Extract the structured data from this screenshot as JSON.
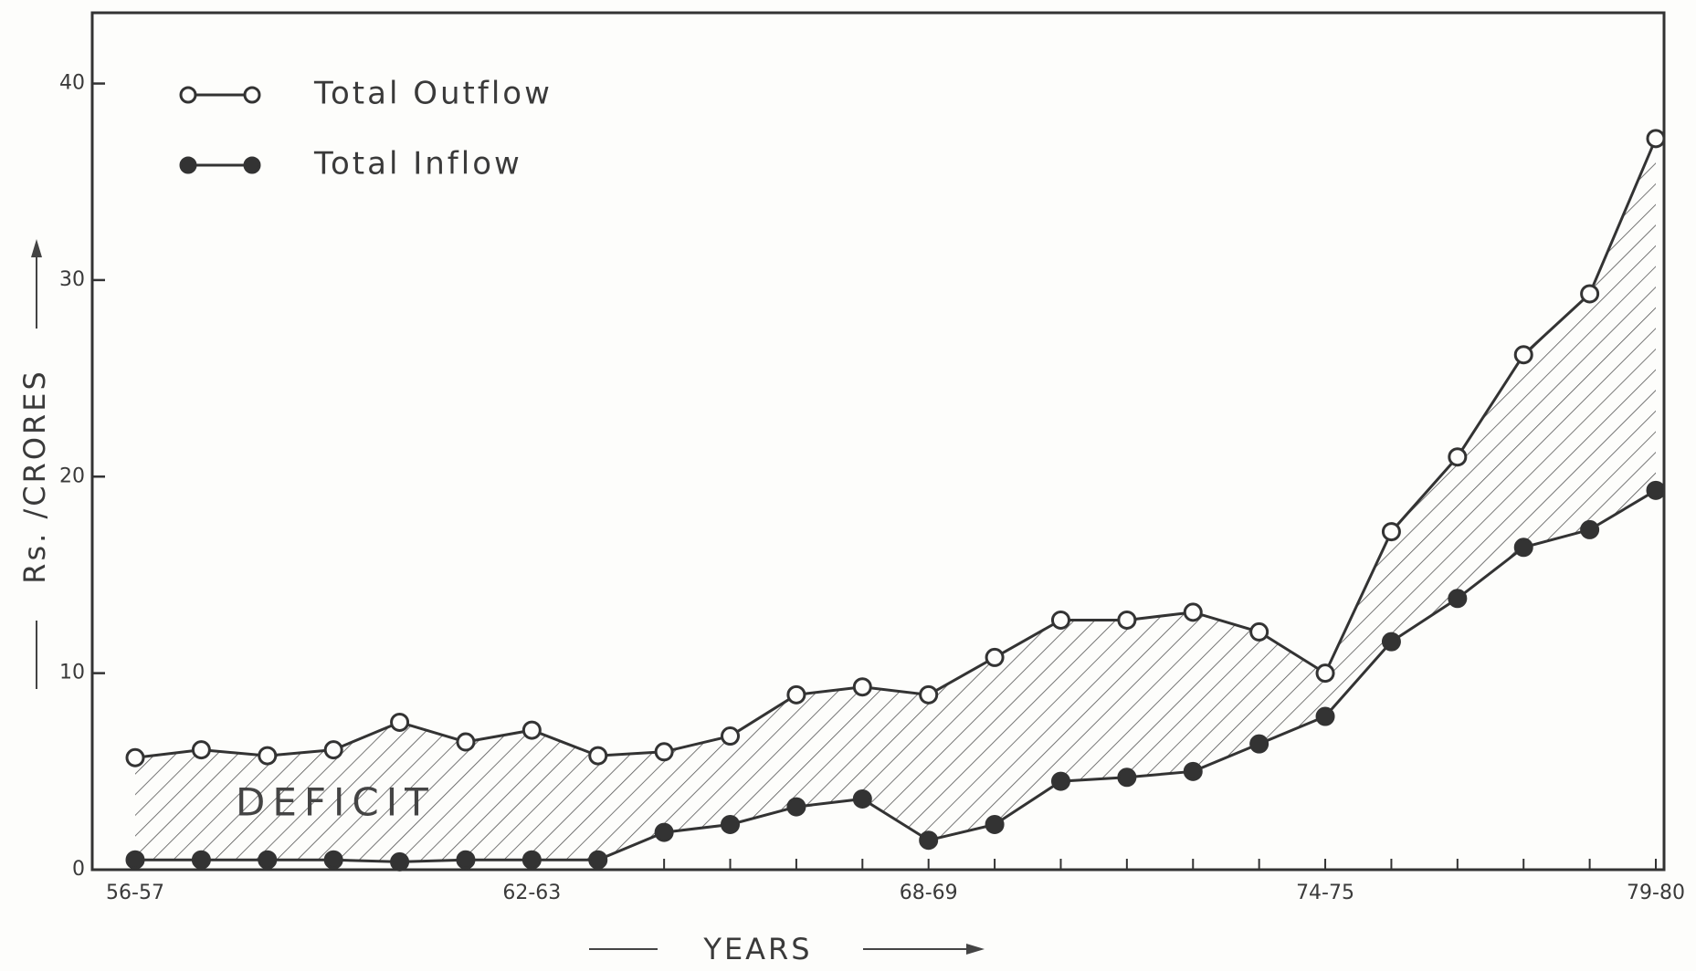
{
  "chart_data": {
    "type": "line",
    "x_label": "YEARS",
    "y_label": "Rs. /CRORES",
    "annotation": "DEFICIT",
    "categories": [
      "56-57",
      null,
      null,
      null,
      null,
      null,
      "62-63",
      null,
      null,
      null,
      null,
      null,
      "68-69",
      null,
      null,
      null,
      null,
      null,
      "74-75",
      null,
      null,
      null,
      null,
      "79-80"
    ],
    "series": [
      {
        "name": "Total Outflow",
        "color": "#333333",
        "marker": "open",
        "values": [
          5.7,
          6.1,
          5.8,
          6.1,
          7.5,
          6.5,
          7.1,
          5.8,
          6.0,
          6.8,
          8.9,
          9.3,
          8.9,
          10.8,
          12.7,
          12.7,
          13.1,
          12.1,
          10.0,
          17.2,
          21.0,
          26.2,
          29.3,
          37.2
        ]
      },
      {
        "name": "Total Inflow",
        "color": "#333333",
        "marker": "filled",
        "values": [
          0.5,
          0.5,
          0.5,
          0.5,
          0.4,
          0.5,
          0.5,
          0.5,
          1.9,
          2.3,
          3.2,
          3.6,
          1.5,
          2.3,
          4.5,
          4.7,
          5.0,
          6.4,
          7.8,
          11.6,
          13.8,
          16.4,
          17.3,
          19.3
        ]
      }
    ],
    "ylim": [
      0,
      43.6
    ],
    "yticks": [
      0,
      10,
      20,
      30,
      40
    ],
    "grid": false,
    "legend": "upper left"
  }
}
